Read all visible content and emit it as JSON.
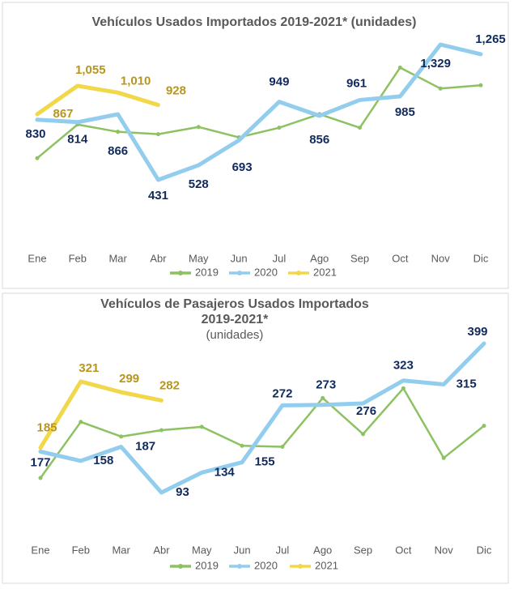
{
  "chart_data": [
    {
      "type": "line",
      "title": "Vehículos Usados Importados 2019-2021* (unidades)",
      "categories": [
        "Ene",
        "Feb",
        "Mar",
        "Abr",
        "May",
        "Jun",
        "Jul",
        "Ago",
        "Sep",
        "Oct",
        "Nov",
        "Dic"
      ],
      "series": [
        {
          "name": "2019",
          "color": "#8dc263",
          "values": [
            575,
            798,
            750,
            734,
            782,
            713,
            777,
            867,
            777,
            1176,
            1037,
            1059
          ]
        },
        {
          "name": "2020",
          "color": "#92cdee",
          "values": [
            830,
            814,
            866,
            431,
            528,
            693,
            949,
            856,
            961,
            985,
            1329,
            1265
          ],
          "value_labels": [
            "830",
            "814",
            "866",
            "431",
            "528",
            "693",
            "949",
            "856",
            "961",
            "985",
            "1,329",
            "1,265"
          ]
        },
        {
          "name": "2021",
          "color": "#f0d84a",
          "values": [
            867,
            1055,
            1010,
            928,
            null,
            null,
            null,
            null,
            null,
            null,
            null,
            null
          ],
          "value_labels": [
            "867",
            "1,055",
            "1,010",
            "928",
            null,
            null,
            null,
            null,
            null,
            null,
            null,
            null
          ]
        }
      ]
    },
    {
      "type": "line",
      "title": [
        "Vehículos de Pasajeros Usados Importados",
        "2019-2021*"
      ],
      "subtitle": "(unidades)",
      "categories": [
        "Ene",
        "Feb",
        "Mar",
        "Abr",
        "May",
        "Jun",
        "Jul",
        "Ago",
        "Sep",
        "Oct",
        "Nov",
        "Dic"
      ],
      "series": [
        {
          "name": "2019",
          "color": "#8dc263",
          "values": [
            123,
            238,
            208,
            221,
            228,
            189,
            187,
            287,
            213,
            307,
            164,
            230
          ]
        },
        {
          "name": "2020",
          "color": "#92cdee",
          "values": [
            177,
            158,
            187,
            93,
            134,
            155,
            272,
            273,
            276,
            323,
            315,
            399
          ]
        },
        {
          "name": "2021",
          "color": "#f0d84a",
          "values": [
            185,
            321,
            299,
            282,
            null,
            null,
            null,
            null,
            null,
            null,
            null,
            null
          ]
        }
      ]
    }
  ]
}
